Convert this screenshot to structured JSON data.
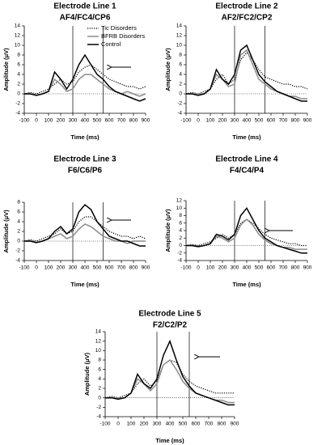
{
  "chart_data": [
    {
      "type": "line",
      "title": "Electrode Line 1",
      "subtitle": "AF4/FC4/CP6",
      "x_label": "Time (ms)",
      "y_label": "Amplitude (μV)",
      "x": [
        -100,
        -50,
        0,
        50,
        100,
        150,
        200,
        250,
        300,
        350,
        400,
        450,
        500,
        550,
        600,
        650,
        700,
        750,
        800,
        850,
        900
      ],
      "xlim": [
        -100,
        900
      ],
      "xticks": [
        -100,
        0,
        100,
        200,
        300,
        400,
        500,
        600,
        700,
        800,
        900
      ],
      "ylim": [
        -4,
        14
      ],
      "yticks": [
        -4,
        -2,
        0,
        2,
        4,
        6,
        8,
        10,
        12,
        14
      ],
      "vlines": [
        300,
        550
      ],
      "legend": "upper right",
      "series": [
        {
          "name": "Tic Disorders",
          "color": "#000000",
          "style": "dotted",
          "values": [
            0,
            0.3,
            0,
            0.5,
            1,
            2,
            3,
            2,
            2.5,
            4.5,
            5.5,
            6,
            5,
            4,
            3,
            2.5,
            2,
            1.5,
            1.5,
            1,
            1.5
          ]
        },
        {
          "name": "BFRB Disorders",
          "color": "#8c8c8c",
          "style": "solid",
          "values": [
            0,
            0,
            -0.3,
            0,
            0.5,
            3,
            2,
            0.5,
            1,
            3,
            4,
            4,
            3,
            2,
            1,
            0.5,
            0,
            0.5,
            0,
            -0.5,
            0
          ]
        },
        {
          "name": "Control",
          "color": "#000000",
          "style": "solid",
          "values": [
            0,
            0,
            -0.3,
            0,
            0.5,
            4.5,
            3,
            1,
            3,
            6,
            8,
            6,
            4,
            3,
            1.5,
            0.5,
            0,
            -0.5,
            -1,
            -1.5,
            -1
          ]
        }
      ]
    },
    {
      "type": "line",
      "title": "Electrode Line 2",
      "subtitle": "AF2/FC2/CP2",
      "x_label": "Time (ms)",
      "y_label": "Amplitude (μV)",
      "x": [
        -100,
        -50,
        0,
        50,
        100,
        150,
        200,
        250,
        300,
        350,
        400,
        450,
        500,
        550,
        600,
        650,
        700,
        750,
        800,
        850,
        900
      ],
      "xlim": [
        -100,
        900
      ],
      "xticks": [
        -100,
        0,
        100,
        200,
        300,
        400,
        500,
        600,
        700,
        800,
        900
      ],
      "ylim": [
        -4,
        14
      ],
      "yticks": [
        -4,
        -2,
        0,
        2,
        4,
        6,
        8,
        10,
        12,
        14
      ],
      "vlines": [
        300,
        550
      ],
      "series": [
        {
          "color": "#000000",
          "style": "dotted",
          "values": [
            0,
            0.3,
            0,
            0.5,
            1,
            3,
            4,
            2,
            3,
            7,
            8.5,
            7,
            5,
            3.5,
            3,
            2.5,
            2,
            2,
            1.5,
            1.5,
            1
          ]
        },
        {
          "color": "#8c8c8c",
          "style": "solid",
          "values": [
            0,
            0,
            0,
            0,
            1,
            4,
            3,
            1.5,
            2,
            8,
            9,
            6,
            3,
            2,
            1,
            0.5,
            0,
            -0.5,
            -0.5,
            -1,
            -1
          ]
        },
        {
          "color": "#000000",
          "style": "solid",
          "values": [
            0,
            0,
            -0.3,
            0,
            1,
            5,
            3,
            2,
            4,
            9,
            10,
            7,
            4,
            2.5,
            1.5,
            0.5,
            0,
            -0.5,
            -1,
            -1.5,
            -1.5
          ]
        }
      ]
    },
    {
      "type": "line",
      "title": "Electrode Line 3",
      "subtitle": "F6/C6/P6",
      "x_label": "Time (ms)",
      "y_label": "Amplitude (μV)",
      "x": [
        -100,
        -50,
        0,
        50,
        100,
        150,
        200,
        250,
        300,
        350,
        400,
        450,
        500,
        550,
        600,
        650,
        700,
        750,
        800,
        850,
        900
      ],
      "xlim": [
        -100,
        900
      ],
      "xticks": [
        -100,
        0,
        100,
        200,
        300,
        400,
        500,
        600,
        700,
        800,
        900
      ],
      "ylim": [
        -4,
        8
      ],
      "yticks": [
        -4,
        -2,
        0,
        2,
        4,
        6,
        8
      ],
      "vlines": [
        300,
        550
      ],
      "series": [
        {
          "color": "#000000",
          "style": "dotted",
          "values": [
            0,
            0.3,
            0,
            0.5,
            1,
            1.5,
            2.5,
            1.5,
            2,
            4,
            5,
            5,
            4,
            3,
            2,
            1.5,
            1,
            1,
            0.5,
            1,
            0.5
          ]
        },
        {
          "color": "#8c8c8c",
          "style": "solid",
          "values": [
            0,
            0,
            -0.3,
            0,
            0.5,
            1,
            1.5,
            0.5,
            1,
            2.5,
            3.5,
            3,
            2,
            1,
            0.5,
            0,
            0,
            -0.5,
            0,
            0,
            0
          ]
        },
        {
          "color": "#000000",
          "style": "solid",
          "values": [
            0,
            0,
            -0.3,
            0,
            0.5,
            2,
            3,
            1.5,
            2.5,
            6,
            7.5,
            6.5,
            4,
            2.5,
            1,
            0.5,
            0,
            0,
            -0.5,
            -1,
            -1
          ]
        }
      ]
    },
    {
      "type": "line",
      "title": "Electrode Line 4",
      "subtitle": "F4/C4/P4",
      "x_label": "Time (ms)",
      "y_label": "Amplitude (μV)",
      "x": [
        -100,
        -50,
        0,
        50,
        100,
        150,
        200,
        250,
        300,
        350,
        400,
        450,
        500,
        550,
        600,
        650,
        700,
        750,
        800,
        850,
        900
      ],
      "xlim": [
        -100,
        900
      ],
      "xticks": [
        -100,
        0,
        100,
        200,
        300,
        400,
        500,
        600,
        700,
        800,
        900
      ],
      "ylim": [
        -4,
        12
      ],
      "yticks": [
        -4,
        -2,
        0,
        2,
        4,
        6,
        8,
        10,
        12
      ],
      "vlines": [
        300,
        550
      ],
      "series": [
        {
          "color": "#000000",
          "style": "dotted",
          "values": [
            0,
            0.3,
            0,
            0.5,
            1,
            2,
            3,
            2,
            3,
            6,
            7,
            6,
            4.5,
            3,
            2,
            1.5,
            1,
            0.5,
            0.5,
            0,
            0
          ]
        },
        {
          "color": "#8c8c8c",
          "style": "solid",
          "values": [
            0,
            0,
            -0.3,
            0,
            0.5,
            2.5,
            2,
            1,
            2,
            5.5,
            7,
            5.5,
            3,
            1.5,
            0.5,
            0,
            -0.5,
            -0.5,
            -1,
            -1,
            -1
          ]
        },
        {
          "color": "#000000",
          "style": "solid",
          "values": [
            0,
            0,
            -0.3,
            0,
            0.5,
            3,
            2.5,
            1.5,
            3,
            8,
            10,
            7,
            4,
            2,
            1,
            0,
            -0.5,
            -1,
            -1.5,
            -2,
            -2
          ]
        }
      ]
    },
    {
      "type": "line",
      "title": "Electrode Line 5",
      "subtitle": "F2/C2/P2",
      "x_label": "Time (ms)",
      "y_label": "Amplitude (μV)",
      "x": [
        -100,
        -50,
        0,
        50,
        100,
        150,
        200,
        250,
        300,
        350,
        400,
        450,
        500,
        550,
        600,
        650,
        700,
        750,
        800,
        850,
        900
      ],
      "xlim": [
        -100,
        900
      ],
      "xticks": [
        -100,
        0,
        100,
        200,
        300,
        400,
        500,
        600,
        700,
        800,
        900
      ],
      "ylim": [
        -4,
        14
      ],
      "yticks": [
        -4,
        -2,
        0,
        2,
        4,
        6,
        8,
        10,
        12,
        14
      ],
      "vlines": [
        300,
        550
      ],
      "series": [
        {
          "color": "#000000",
          "style": "dotted",
          "values": [
            0,
            0.3,
            0,
            0.5,
            1,
            3,
            4,
            2.5,
            3.5,
            7,
            8,
            7.5,
            5,
            3.5,
            2.5,
            2,
            1.5,
            1,
            1,
            1,
            1
          ]
        },
        {
          "color": "#8c8c8c",
          "style": "solid",
          "values": [
            0,
            0,
            0,
            0,
            1,
            4,
            3,
            1.5,
            3,
            7,
            8,
            6,
            3.5,
            2,
            1,
            0.5,
            0,
            -0.5,
            -0.5,
            -1,
            -1
          ]
        },
        {
          "color": "#000000",
          "style": "solid",
          "values": [
            0,
            0,
            -0.3,
            0,
            1,
            5,
            3,
            2,
            4,
            9,
            12,
            8,
            4.5,
            2.5,
            1,
            0.5,
            0,
            -0.5,
            -1,
            -1.5,
            -1.5
          ]
        }
      ]
    }
  ]
}
